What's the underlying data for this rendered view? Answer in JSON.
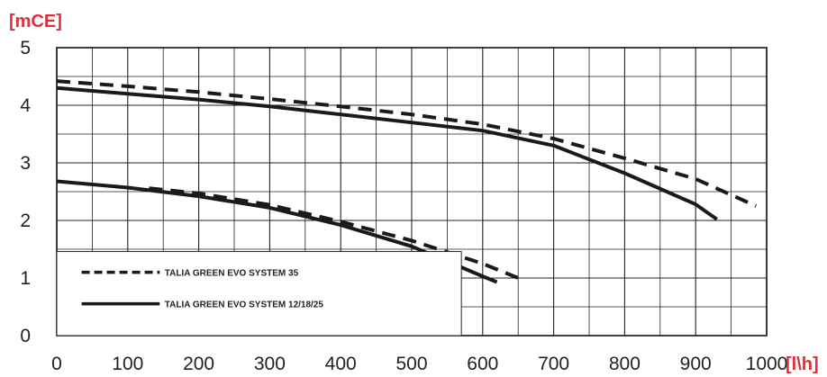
{
  "chart_data": {
    "type": "line",
    "title": "",
    "ylabel": "[mCE]",
    "xlabel": "[l\\h]",
    "xlim": [
      0,
      1000
    ],
    "ylim": [
      0,
      5
    ],
    "x_ticks": [
      "0",
      "100",
      "200",
      "300",
      "400",
      "500",
      "600",
      "700",
      "800",
      "900",
      "1000"
    ],
    "y_ticks": [
      "0",
      "1",
      "2",
      "3",
      "4",
      "5"
    ],
    "grid": true,
    "legend_position": "bottom-left",
    "unit_color": "#d9323a",
    "series": [
      {
        "name": "TALIA GREEN EVO SYSTEM 35",
        "style": "dashed",
        "curves": [
          [
            [
              0,
              4.42
            ],
            [
              100,
              4.33
            ],
            [
              200,
              4.23
            ],
            [
              300,
              4.11
            ],
            [
              400,
              3.98
            ],
            [
              500,
              3.84
            ],
            [
              600,
              3.67
            ],
            [
              700,
              3.42
            ],
            [
              800,
              3.08
            ],
            [
              900,
              2.72
            ],
            [
              985,
              2.25
            ]
          ],
          [
            [
              130,
              2.56
            ],
            [
              200,
              2.47
            ],
            [
              300,
              2.27
            ],
            [
              400,
              1.98
            ],
            [
              500,
              1.65
            ],
            [
              600,
              1.25
            ],
            [
              650,
              1.0
            ]
          ]
        ]
      },
      {
        "name": "TALIA GREEN EVO SYSTEM 12/18/25",
        "style": "solid",
        "curves": [
          [
            [
              0,
              4.3
            ],
            [
              100,
              4.2
            ],
            [
              200,
              4.1
            ],
            [
              300,
              3.98
            ],
            [
              400,
              3.84
            ],
            [
              500,
              3.7
            ],
            [
              600,
              3.56
            ],
            [
              700,
              3.3
            ],
            [
              800,
              2.82
            ],
            [
              900,
              2.28
            ],
            [
              930,
              2.02
            ]
          ],
          [
            [
              0,
              2.68
            ],
            [
              100,
              2.57
            ],
            [
              200,
              2.42
            ],
            [
              300,
              2.22
            ],
            [
              400,
              1.92
            ],
            [
              500,
              1.55
            ],
            [
              600,
              1.03
            ],
            [
              620,
              0.93
            ]
          ]
        ]
      }
    ]
  }
}
